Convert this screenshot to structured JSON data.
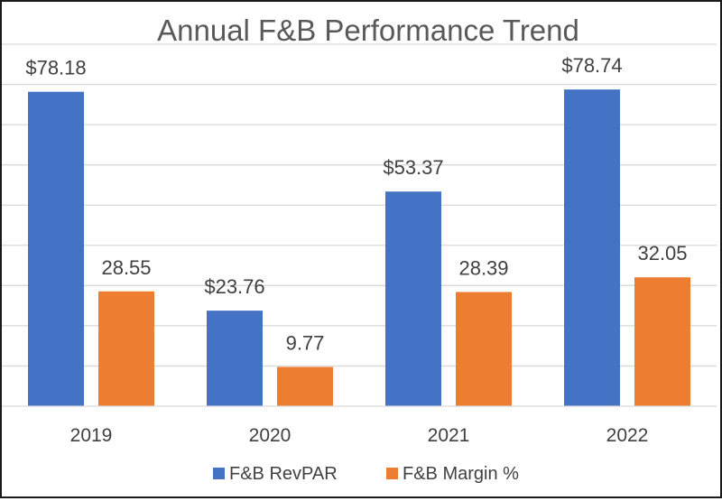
{
  "chart_data": {
    "type": "bar",
    "title": "Annual F&B Performance Trend",
    "xlabel": "",
    "ylabel": "",
    "categories": [
      "2019",
      "2020",
      "2021",
      "2022"
    ],
    "series": [
      {
        "name": "F&B RevPAR",
        "color": "#4472c4",
        "values": [
          78.18,
          23.76,
          53.37,
          78.74
        ],
        "labels": [
          "$78.18",
          "$23.76",
          "$53.37",
          "$78.74"
        ]
      },
      {
        "name": "F&B Margin %",
        "color": "#ed7d31",
        "values": [
          28.55,
          9.77,
          28.39,
          32.05
        ],
        "labels": [
          "28.55",
          "9.77",
          "28.39",
          "32.05"
        ]
      }
    ],
    "ylim": [
      0,
      90
    ],
    "y_gridline_step": 10,
    "grid": true,
    "y_tick_labels_shown": false,
    "legend_position": "bottom",
    "title_color": "#595959",
    "gridline_color": "#d9d9d9",
    "label_color": "#404040"
  }
}
